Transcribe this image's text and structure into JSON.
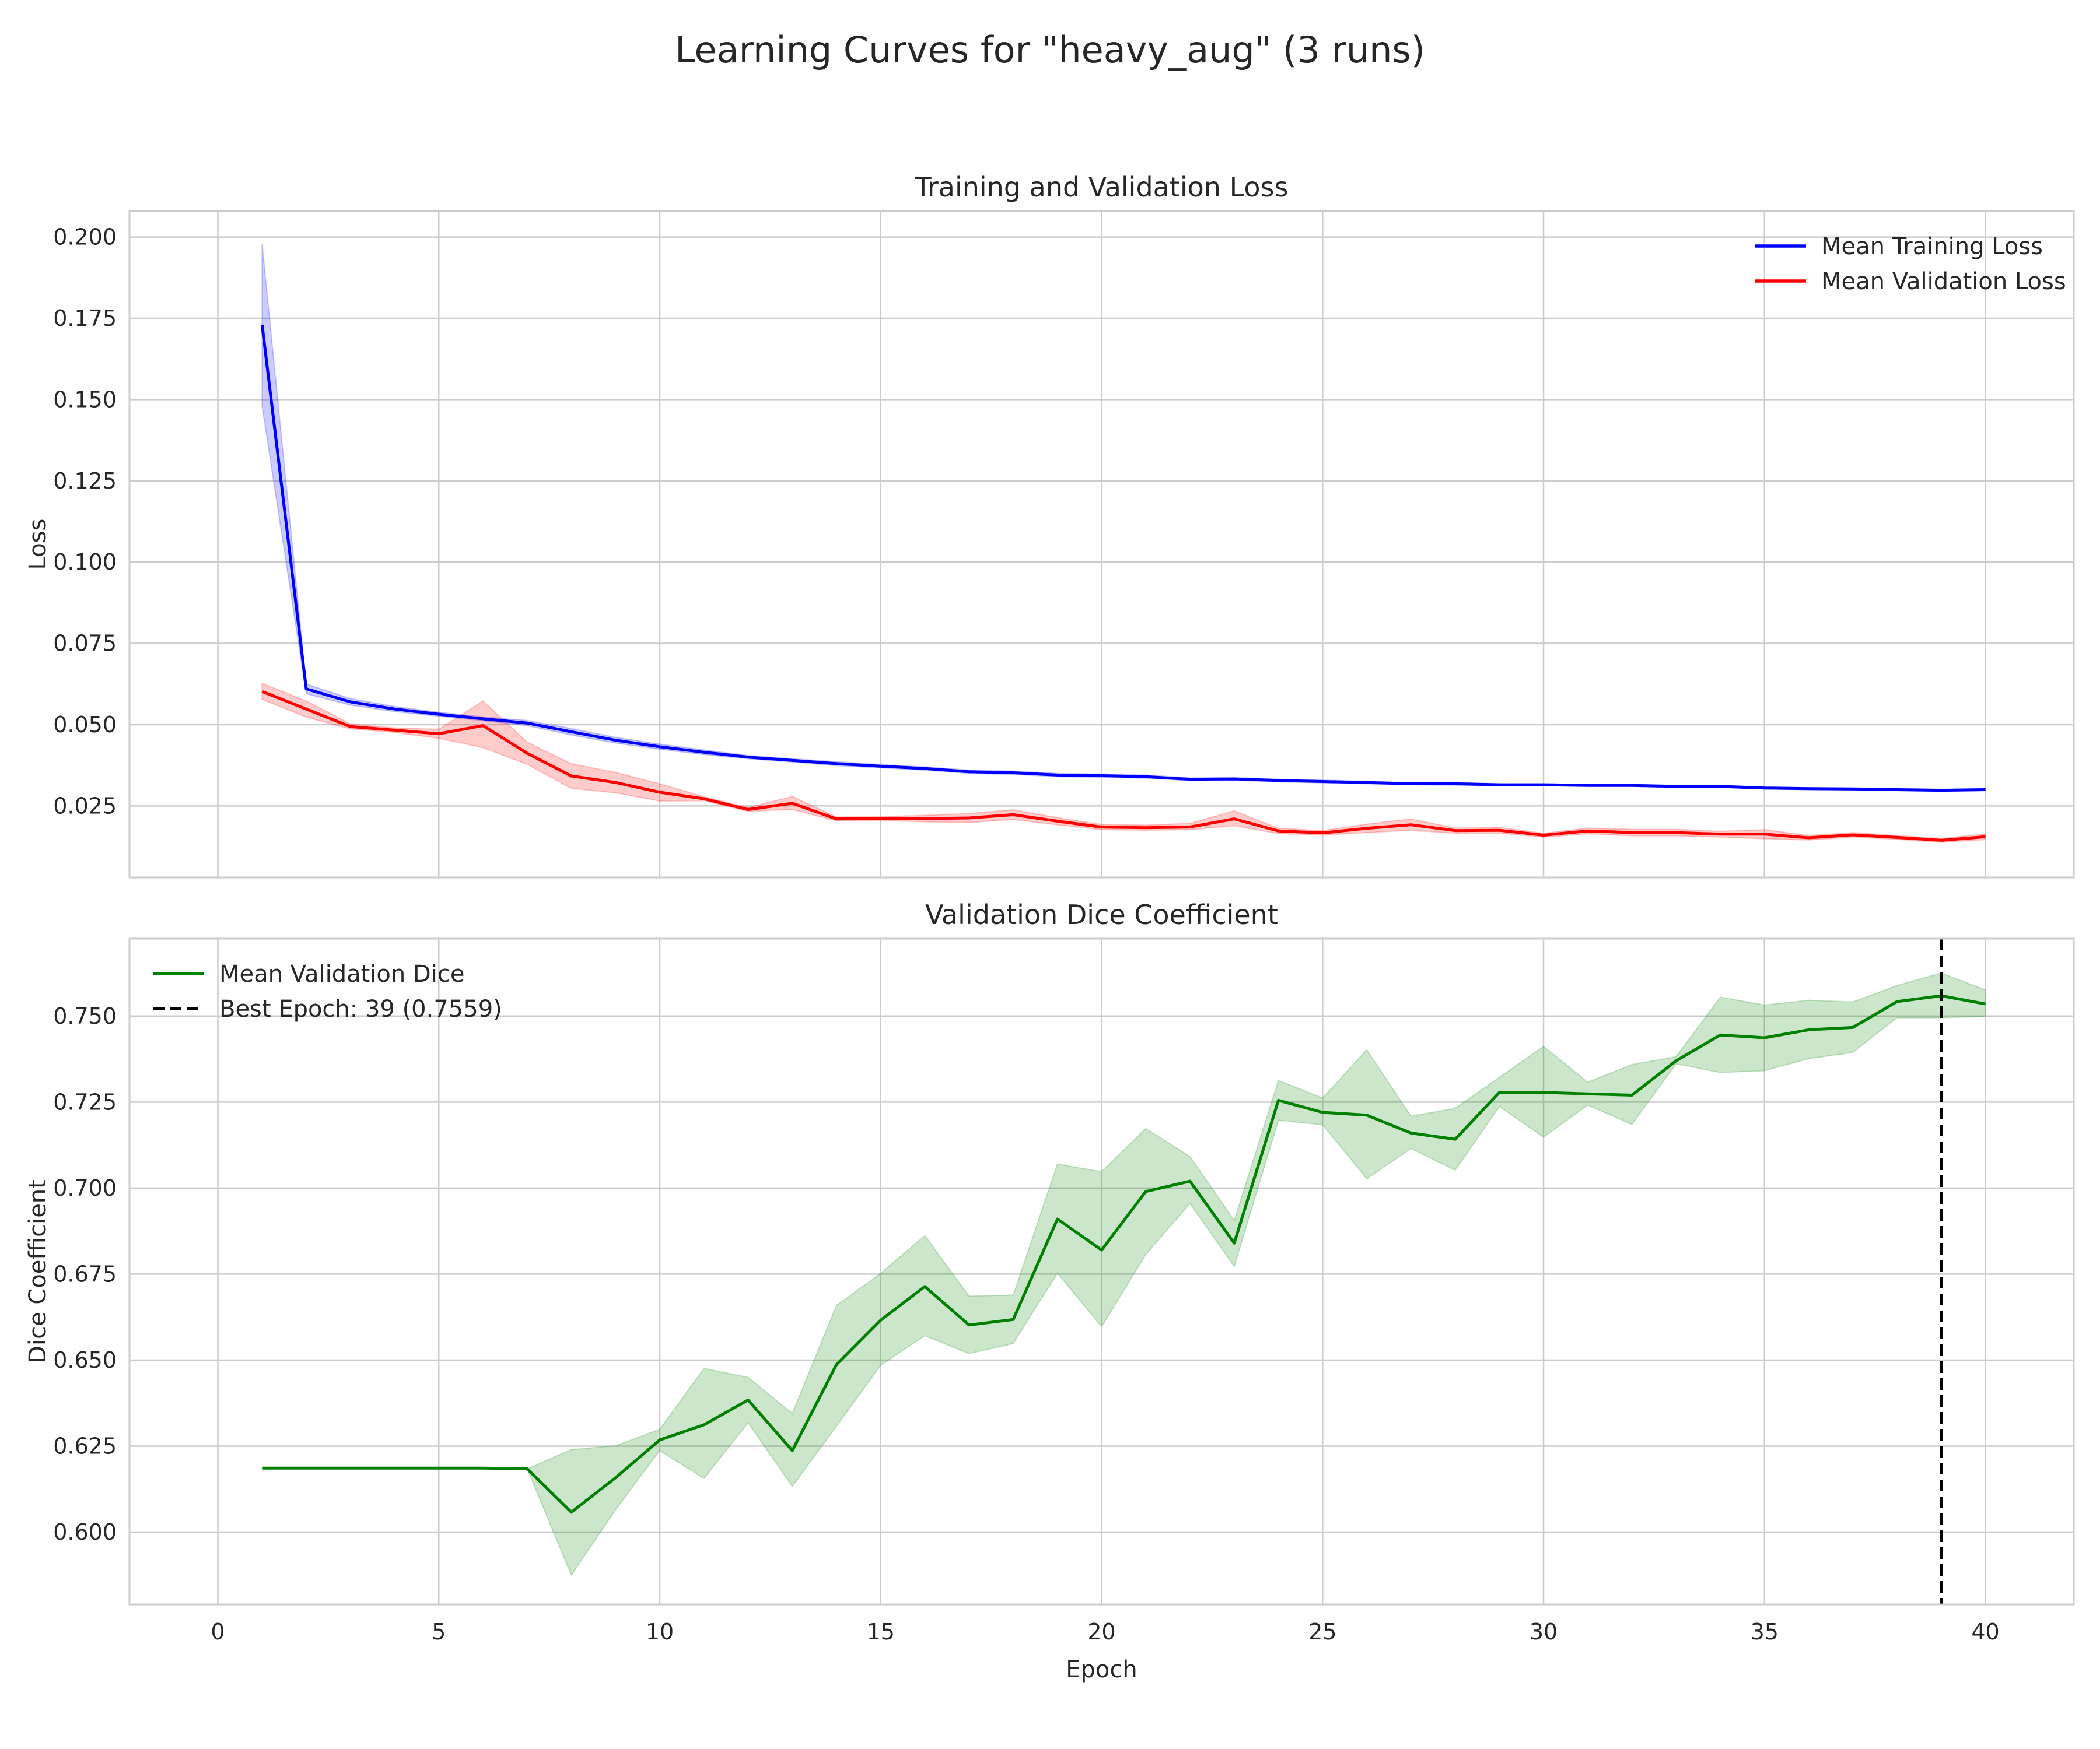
{
  "figure": {
    "title": "Learning Curves for \"heavy_aug\" (3 runs)"
  },
  "chart_data": [
    {
      "type": "line",
      "title": "Training and Validation Loss",
      "xlabel": "",
      "ylabel": "Loss",
      "xlim": [
        -2,
        42
      ],
      "ylim": [
        0.003,
        0.208
      ],
      "xticks": [
        0,
        5,
        10,
        15,
        20,
        25,
        30,
        35,
        40
      ],
      "yticks": [
        0.025,
        0.05,
        0.075,
        0.1,
        0.125,
        0.15,
        0.175,
        0.2
      ],
      "ytick_labels": [
        "0.025",
        "0.050",
        "0.075",
        "0.100",
        "0.125",
        "0.150",
        "0.175",
        "0.200"
      ],
      "show_xtick_labels": false,
      "grid": true,
      "legend_position": "upper right",
      "x": [
        1,
        2,
        3,
        4,
        5,
        6,
        7,
        8,
        9,
        10,
        11,
        12,
        13,
        14,
        15,
        16,
        17,
        18,
        19,
        20,
        21,
        22,
        23,
        24,
        25,
        26,
        27,
        28,
        29,
        30,
        31,
        32,
        33,
        34,
        35,
        36,
        37,
        38,
        39,
        40
      ],
      "series": [
        {
          "name": "Mean Training Loss",
          "color": "#0000ff",
          "values": [
            0.173,
            0.061,
            0.057,
            0.0548,
            0.0532,
            0.0518,
            0.0505,
            0.0478,
            0.0452,
            0.0432,
            0.0415,
            0.04,
            0.039,
            0.038,
            0.0372,
            0.0365,
            0.0355,
            0.0352,
            0.0345,
            0.0343,
            0.034,
            0.0332,
            0.0333,
            0.0328,
            0.0325,
            0.0322,
            0.0318,
            0.0318,
            0.0315,
            0.0315,
            0.0313,
            0.0313,
            0.031,
            0.031,
            0.0305,
            0.0303,
            0.0302,
            0.03,
            0.0298,
            0.03
          ],
          "lower": [
            0.148,
            0.0595,
            0.056,
            0.054,
            0.0526,
            0.0512,
            0.0497,
            0.0468,
            0.0443,
            0.0424,
            0.0408,
            0.0395,
            0.0385,
            0.0374,
            0.0367,
            0.036,
            0.035,
            0.0347,
            0.034,
            0.0338,
            0.0335,
            0.0328,
            0.0329,
            0.0324,
            0.0321,
            0.0318,
            0.0315,
            0.0314,
            0.0312,
            0.0312,
            0.031,
            0.031,
            0.0307,
            0.0307,
            0.0302,
            0.03,
            0.0299,
            0.0297,
            0.0295,
            0.0297
          ],
          "upper": [
            0.198,
            0.0625,
            0.058,
            0.0556,
            0.0538,
            0.0524,
            0.0513,
            0.0488,
            0.0461,
            0.044,
            0.0422,
            0.0405,
            0.0395,
            0.0386,
            0.0377,
            0.037,
            0.036,
            0.0357,
            0.035,
            0.0348,
            0.0345,
            0.0336,
            0.0337,
            0.0332,
            0.0329,
            0.0326,
            0.0321,
            0.0322,
            0.0318,
            0.0318,
            0.0316,
            0.0316,
            0.0313,
            0.0313,
            0.0308,
            0.0306,
            0.0305,
            0.0303,
            0.0301,
            0.0303
          ]
        },
        {
          "name": "Mean Validation Loss",
          "color": "#ff0000",
          "values": [
            0.0602,
            0.0548,
            0.0494,
            0.0483,
            0.0472,
            0.0497,
            0.0412,
            0.0342,
            0.0322,
            0.0292,
            0.0272,
            0.0239,
            0.0258,
            0.021,
            0.0211,
            0.0211,
            0.0213,
            0.0223,
            0.0203,
            0.0185,
            0.0183,
            0.0185,
            0.021,
            0.0173,
            0.0167,
            0.0181,
            0.0192,
            0.0174,
            0.0175,
            0.016,
            0.0173,
            0.0168,
            0.0168,
            0.0163,
            0.0163,
            0.0152,
            0.0161,
            0.0153,
            0.0144,
            0.0155
          ],
          "lower": [
            0.0578,
            0.0523,
            0.0487,
            0.0476,
            0.0458,
            0.0429,
            0.0378,
            0.0304,
            0.029,
            0.0265,
            0.0266,
            0.0233,
            0.0239,
            0.0204,
            0.0205,
            0.0201,
            0.0199,
            0.0208,
            0.0192,
            0.0177,
            0.0175,
            0.0177,
            0.0189,
            0.0165,
            0.016,
            0.0168,
            0.0175,
            0.0166,
            0.0166,
            0.0154,
            0.0164,
            0.0158,
            0.0158,
            0.0154,
            0.0149,
            0.0145,
            0.0154,
            0.0147,
            0.0138,
            0.0146
          ],
          "upper": [
            0.0627,
            0.0573,
            0.0502,
            0.049,
            0.0486,
            0.0573,
            0.0446,
            0.038,
            0.0353,
            0.0318,
            0.0278,
            0.0245,
            0.0279,
            0.0216,
            0.0217,
            0.0221,
            0.0227,
            0.0238,
            0.0214,
            0.0193,
            0.0191,
            0.0196,
            0.0235,
            0.0181,
            0.0174,
            0.0194,
            0.021,
            0.0182,
            0.0184,
            0.0166,
            0.0182,
            0.0178,
            0.0178,
            0.0172,
            0.0177,
            0.0159,
            0.0168,
            0.0159,
            0.015,
            0.0164
          ]
        }
      ]
    },
    {
      "type": "line",
      "title": "Validation Dice Coefficient",
      "xlabel": "Epoch",
      "ylabel": "Dice Coefficient",
      "xlim": [
        -2,
        42
      ],
      "ylim": [
        0.579,
        0.7725
      ],
      "xticks": [
        0,
        5,
        10,
        15,
        20,
        25,
        30,
        35,
        40
      ],
      "yticks": [
        0.6,
        0.625,
        0.65,
        0.675,
        0.7,
        0.725,
        0.75
      ],
      "ytick_labels": [
        "0.600",
        "0.625",
        "0.650",
        "0.675",
        "0.700",
        "0.725",
        "0.750"
      ],
      "show_xtick_labels": true,
      "grid": true,
      "legend_position": "upper left",
      "x": [
        1,
        2,
        3,
        4,
        5,
        6,
        7,
        8,
        9,
        10,
        11,
        12,
        13,
        14,
        15,
        16,
        17,
        18,
        19,
        20,
        21,
        22,
        23,
        24,
        25,
        26,
        27,
        28,
        29,
        30,
        31,
        32,
        33,
        34,
        35,
        36,
        37,
        38,
        39,
        40
      ],
      "series": [
        {
          "name": "Mean Validation Dice",
          "color": "#008000",
          "values": [
            0.6186,
            0.6186,
            0.6186,
            0.6186,
            0.6186,
            0.6186,
            0.6184,
            0.6058,
            0.6158,
            0.6268,
            0.6312,
            0.6384,
            0.6237,
            0.6487,
            0.6616,
            0.6714,
            0.6602,
            0.6618,
            0.691,
            0.682,
            0.699,
            0.702,
            0.684,
            0.7255,
            0.722,
            0.7212,
            0.716,
            0.7142,
            0.7278,
            0.7278,
            0.7274,
            0.727,
            0.737,
            0.7445,
            0.7437,
            0.746,
            0.7467,
            0.7542,
            0.7559,
            0.7535
          ],
          "lower": [
            0.6186,
            0.6186,
            0.6186,
            0.6186,
            0.6186,
            0.6186,
            0.6184,
            0.5875,
            0.6065,
            0.6237,
            0.6156,
            0.6318,
            0.6133,
            0.6308,
            0.6485,
            0.6571,
            0.6519,
            0.6548,
            0.6753,
            0.6597,
            0.6807,
            0.6955,
            0.6772,
            0.7197,
            0.7184,
            0.7027,
            0.7115,
            0.7052,
            0.7237,
            0.7148,
            0.7241,
            0.7185,
            0.7361,
            0.7336,
            0.7341,
            0.7376,
            0.7394,
            0.7495,
            0.7495,
            0.7499
          ],
          "upper": [
            0.6186,
            0.6186,
            0.6186,
            0.6186,
            0.6186,
            0.6186,
            0.6184,
            0.624,
            0.6251,
            0.6299,
            0.6476,
            0.645,
            0.6345,
            0.6659,
            0.6752,
            0.6862,
            0.6686,
            0.6689,
            0.707,
            0.7048,
            0.7173,
            0.7092,
            0.6906,
            0.7313,
            0.7262,
            0.7402,
            0.7209,
            0.7232,
            0.7322,
            0.7412,
            0.7308,
            0.7359,
            0.7382,
            0.7555,
            0.7532,
            0.7546,
            0.7541,
            0.7589,
            0.7625,
            0.7576
          ]
        }
      ],
      "reference_lines": [
        {
          "name": "Best Epoch: 39 (0.7559)",
          "x": 39,
          "color": "#000000",
          "style": "dashed"
        }
      ]
    }
  ]
}
